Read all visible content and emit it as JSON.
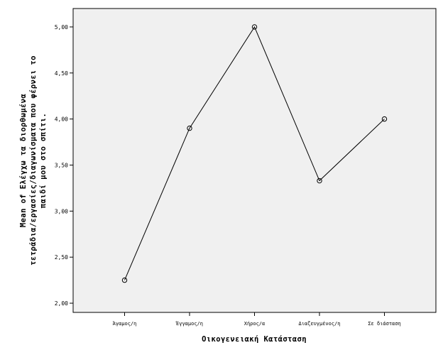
{
  "chart_data": {
    "type": "line",
    "categories": [
      "Άγαμος/η",
      "Έγγαμος/η",
      "Χήρος/α",
      "Διαζευγμένος/η",
      "Σε διάσταση"
    ],
    "values": [
      2.25,
      3.9,
      5.0,
      3.33,
      4.0
    ],
    "xlabel": "Οικογενειακή Κατάσταση",
    "ylabel_lines": [
      "Mean of Ελέγχω τα διορθωμένα",
      "τετράδια/εργασίες/διαγωνίσματα που φέρνει το",
      "παιδί μου στο σπίτι."
    ],
    "yticks": [
      "2,00",
      "2,50",
      "3,00",
      "3,50",
      "4,00",
      "4,50",
      "5,00"
    ],
    "ylim": [
      1.9,
      5.2
    ],
    "grid": false,
    "marker": "open-circle",
    "colors": {
      "plot_bg": "#f0f0f0",
      "line": "#000000"
    }
  }
}
